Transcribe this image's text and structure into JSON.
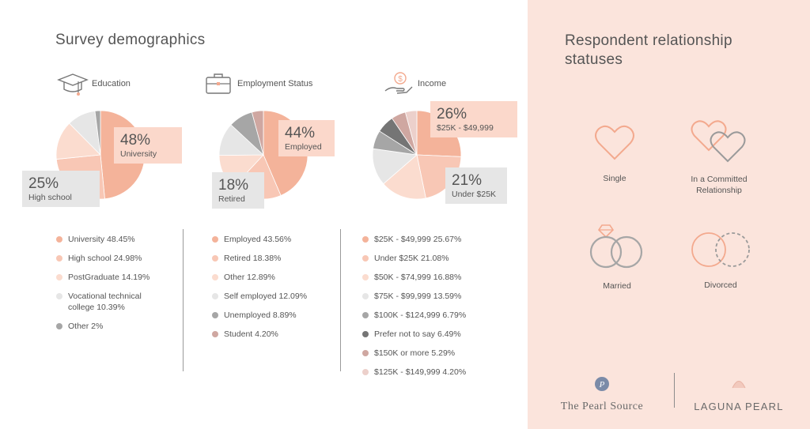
{
  "left_title": "Survey demographics",
  "right_title": "Respondent relationship statuses",
  "colors": {
    "c1": "#f4b39a",
    "c2": "#f8c7b5",
    "c3": "#fbdccf",
    "c4": "#e6e6e6",
    "c5": "#a6a6a6",
    "c6": "#cfa7a1",
    "c7": "#757575",
    "c8": "#ecd0cb",
    "accent": "#f3a98e",
    "gray_icon": "#9a9a9a"
  },
  "sections": {
    "education": {
      "title": "Education",
      "icon": "graduation-cap-icon",
      "callout_main": {
        "pct": "48%",
        "label": "University"
      },
      "callout_second": {
        "pct": "25%",
        "label": "High school"
      },
      "legend": [
        {
          "label": "University 48.45%"
        },
        {
          "label": "High school 24.98%"
        },
        {
          "label": "PostGraduate 14.19%"
        },
        {
          "label": "Vocational technical college 10.39%"
        },
        {
          "label": "Other 2%"
        }
      ]
    },
    "employment": {
      "title": "Employment Status",
      "icon": "briefcase-icon",
      "callout_main": {
        "pct": "44%",
        "label": "Employed"
      },
      "callout_second": {
        "pct": "18%",
        "label": "Retired"
      },
      "legend": [
        {
          "label": "Employed 43.56%"
        },
        {
          "label": "Retired 18.38%"
        },
        {
          "label": "Other 12.89%"
        },
        {
          "label": "Self employed 12.09%"
        },
        {
          "label": "Unemployed 8.89%"
        },
        {
          "label": "Student 4.20%"
        }
      ]
    },
    "income": {
      "title": "Income",
      "icon": "money-hand-icon",
      "callout_main": {
        "pct": "26%",
        "label": "$25K - $49,999"
      },
      "callout_second": {
        "pct": "21%",
        "label": "Under $25K"
      },
      "legend": [
        {
          "label": "$25K - $49,999 25.67%"
        },
        {
          "label": "Under $25K 21.08%"
        },
        {
          "label": "$50K - $74,999 16.88%"
        },
        {
          "label": "$75K - $99,999 13.59%"
        },
        {
          "label": "$100K - $124,999 6.79%"
        },
        {
          "label": "Prefer not to say 6.49%"
        },
        {
          "label": "$150K or more 5.29%"
        },
        {
          "label": "$125K - $149,999 4.20%"
        }
      ]
    }
  },
  "statuses": [
    {
      "label": "Single",
      "icon": "heart-icon"
    },
    {
      "label": "In a Committed Relationship",
      "icon": "two-hearts-icon"
    },
    {
      "label": "Married",
      "icon": "wedding-rings-icon"
    },
    {
      "label": "Divorced",
      "icon": "separated-circles-icon"
    }
  ],
  "brands": {
    "left": "The Pearl Source",
    "left_logo": "pearl-source-logo-icon",
    "right": "LAGUNA PEARL",
    "right_logo": "laguna-pearl-logo-icon"
  },
  "chart_data": [
    {
      "type": "pie",
      "title": "Education",
      "categories": [
        "University",
        "High school",
        "PostGraduate",
        "Vocational technical college",
        "Other"
      ],
      "values": [
        48.45,
        24.98,
        14.19,
        10.39,
        2
      ],
      "colors": [
        "#f4b39a",
        "#f8c7b5",
        "#fbdccf",
        "#e6e6e6",
        "#a6a6a6"
      ]
    },
    {
      "type": "pie",
      "title": "Employment Status",
      "categories": [
        "Employed",
        "Retired",
        "Other",
        "Self employed",
        "Unemployed",
        "Student"
      ],
      "values": [
        43.56,
        18.38,
        12.89,
        12.09,
        8.89,
        4.2
      ],
      "colors": [
        "#f4b39a",
        "#f8c7b5",
        "#fbdccf",
        "#e6e6e6",
        "#a6a6a6",
        "#cfa7a1"
      ]
    },
    {
      "type": "pie",
      "title": "Income",
      "categories": [
        "$25K - $49,999",
        "Under $25K",
        "$50K - $74,999",
        "$75K - $99,999",
        "$100K - $124,999",
        "Prefer not to say",
        "$150K or more",
        "$125K - $149,999"
      ],
      "values": [
        25.67,
        21.08,
        16.88,
        13.59,
        6.79,
        6.49,
        5.29,
        4.2
      ],
      "colors": [
        "#f4b39a",
        "#f8c7b5",
        "#fbdccf",
        "#e6e6e6",
        "#a6a6a6",
        "#757575",
        "#cfa7a1",
        "#ecd0cb"
      ]
    }
  ]
}
